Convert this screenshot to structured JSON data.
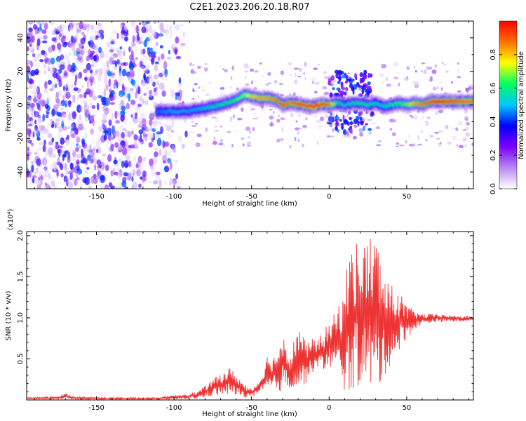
{
  "figure_title": "C2E1.2023.206.20.18.R07",
  "chart_data": [
    {
      "type": "heatmap",
      "title": "C2E1.2023.206.20.18.R07",
      "xlabel": "Height of straight line (km)",
      "ylabel": "Frequency (Hz)",
      "xlim": [
        -195,
        93
      ],
      "ylim": [
        -50,
        50
      ],
      "xticks": [
        -150,
        -100,
        -50,
        0,
        50
      ],
      "yticks": [
        -40,
        -20,
        0,
        20,
        40
      ],
      "colorbar": {
        "label": "Normalized spectral amplitude",
        "range": [
          0.0,
          1.0
        ],
        "ticks": [
          "0.0",
          "0.2",
          "0.4",
          "0.6",
          "0.8"
        ],
        "colors": [
          "#ffffff",
          "#b98af0",
          "#7c00ff",
          "#0000ff",
          "#00c8ff",
          "#00ff60",
          "#ffff00",
          "#ff7000",
          "#ff0000"
        ]
      },
      "ridge": {
        "x": [
          -112,
          -100,
          -90,
          -80,
          -70,
          -60,
          -55,
          -50,
          -45,
          -40,
          -35,
          -30,
          -25,
          -20,
          -15,
          -10,
          -5,
          0,
          5,
          10,
          15,
          20,
          25,
          30,
          35,
          40,
          45,
          50,
          55,
          60,
          65,
          70,
          80,
          93
        ],
        "y": [
          -4,
          -4,
          -3.5,
          -2,
          0,
          3,
          6,
          5,
          4,
          4,
          3,
          0,
          1,
          0.5,
          -0.5,
          -1,
          0.5,
          0,
          1,
          0,
          1,
          1,
          0,
          1,
          -1,
          0,
          1,
          0,
          1,
          0,
          2,
          2,
          2,
          2
        ],
        "amplitude": [
          0.45,
          0.5,
          0.5,
          0.55,
          0.6,
          0.65,
          0.7,
          0.8,
          0.85,
          0.85,
          0.9,
          0.95,
          0.9,
          0.95,
          0.95,
          1.0,
          0.95,
          0.9,
          0.6,
          0.55,
          0.6,
          0.6,
          0.6,
          0.55,
          0.55,
          0.6,
          0.65,
          0.7,
          0.85,
          0.9,
          0.95,
          1.0,
          0.95,
          0.9
        ]
      },
      "noise_region_x": [
        -195,
        -90
      ]
    },
    {
      "type": "line",
      "xlabel": "Height of straight line (km)",
      "ylabel": "SNR (10 * v/v)",
      "scale_label": "(x10⁴)",
      "xlim": [
        -195,
        93
      ],
      "ylim": [
        0,
        2.05
      ],
      "xticks": [
        -150,
        -100,
        -50,
        0,
        50
      ],
      "yticks": [
        0.5,
        1.0,
        1.5,
        2.0
      ],
      "color": "#ee3333",
      "envelope": {
        "x": [
          -195,
          -175,
          -170,
          -165,
          -140,
          -110,
          -85,
          -75,
          -65,
          -60,
          -55,
          -50,
          -45,
          -40,
          -35,
          -30,
          -25,
          -20,
          -15,
          -10,
          -5,
          0,
          5,
          10,
          15,
          20,
          25,
          30,
          35,
          40,
          45,
          50,
          55,
          60,
          70,
          80,
          93
        ],
        "y_low": [
          0.01,
          0.01,
          0.01,
          0.01,
          0.005,
          0.005,
          0.01,
          0.05,
          0.06,
          0.05,
          0.03,
          0.03,
          0.05,
          0.08,
          0.1,
          0.1,
          0.15,
          0.1,
          0.2,
          0.35,
          0.35,
          0.4,
          0.3,
          0.1,
          0.05,
          0.2,
          0.15,
          0.05,
          0.25,
          0.45,
          0.6,
          0.75,
          0.85,
          0.92,
          0.95,
          0.95,
          0.96
        ],
        "y_high": [
          0.03,
          0.04,
          0.09,
          0.04,
          0.03,
          0.03,
          0.1,
          0.25,
          0.4,
          0.33,
          0.2,
          0.15,
          0.25,
          0.55,
          0.55,
          0.85,
          0.55,
          0.95,
          0.7,
          0.75,
          0.8,
          0.95,
          1.1,
          1.5,
          2.0,
          1.9,
          2.0,
          2.05,
          1.6,
          1.4,
          1.35,
          1.15,
          1.1,
          1.05,
          1.05,
          1.03,
          1.02
        ]
      }
    }
  ]
}
